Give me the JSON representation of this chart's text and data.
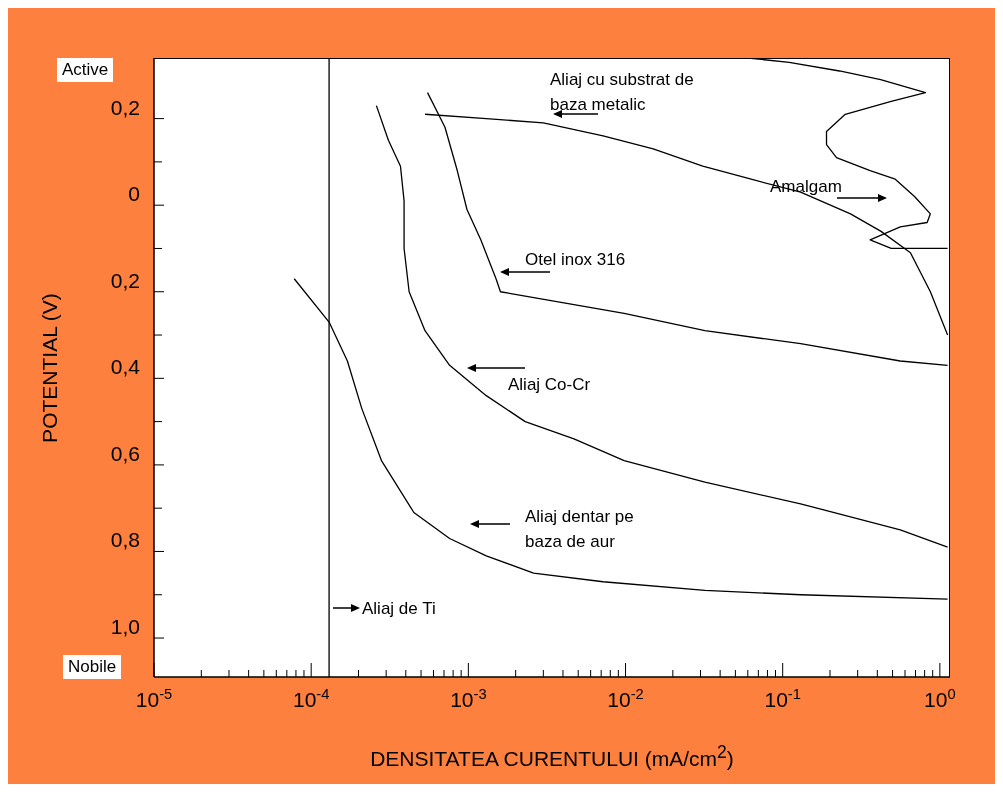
{
  "chart_data": {
    "type": "line",
    "xlabel": "DENSITATEA CURENTULUI (mA/cm$^{2}$)",
    "ylabel": "POTENTIAL (V)",
    "log": "x",
    "xlim": [
      1e-05,
      1.16
    ],
    "ylim": [
      -1.09,
      0.34
    ],
    "xticks": [
      {
        "value": 1e-05,
        "label": "10$^{-5}$"
      },
      {
        "value": 2e-05,
        "label": null
      },
      {
        "value": 3e-05,
        "label": null
      },
      {
        "value": 4e-05,
        "label": null
      },
      {
        "value": 5e-05,
        "label": null
      },
      {
        "value": 6e-05,
        "label": null
      },
      {
        "value": 7e-05,
        "label": null
      },
      {
        "value": 8e-05,
        "label": null
      },
      {
        "value": 9e-05,
        "label": null
      },
      {
        "value": 0.0001,
        "label": "10$^{-4}$"
      },
      {
        "value": 0.0002,
        "label": null
      },
      {
        "value": 0.0003,
        "label": null
      },
      {
        "value": 0.0004,
        "label": null
      },
      {
        "value": 0.0005,
        "label": null
      },
      {
        "value": 0.0006,
        "label": null
      },
      {
        "value": 0.0007,
        "label": null
      },
      {
        "value": 0.0008,
        "label": null
      },
      {
        "value": 0.0009,
        "label": null
      },
      {
        "value": 0.001,
        "label": "10$^{-3}$"
      },
      {
        "value": 0.002,
        "label": null
      },
      {
        "value": 0.003,
        "label": null
      },
      {
        "value": 0.004,
        "label": null
      },
      {
        "value": 0.005,
        "label": null
      },
      {
        "value": 0.006,
        "label": null
      },
      {
        "value": 0.007,
        "label": null
      },
      {
        "value": 0.008,
        "label": null
      },
      {
        "value": 0.009,
        "label": null
      },
      {
        "value": 0.01,
        "label": "10$^{-2}$"
      },
      {
        "value": 0.02,
        "label": null
      },
      {
        "value": 0.03,
        "label": null
      },
      {
        "value": 0.04,
        "label": null
      },
      {
        "value": 0.05,
        "label": null
      },
      {
        "value": 0.06,
        "label": null
      },
      {
        "value": 0.07,
        "label": null
      },
      {
        "value": 0.08,
        "label": null
      },
      {
        "value": 0.09,
        "label": null
      },
      {
        "value": 0.1,
        "label": "10$^{-1}$"
      },
      {
        "value": 0.2,
        "label": null
      },
      {
        "value": 0.3,
        "label": null
      },
      {
        "value": 0.4,
        "label": null
      },
      {
        "value": 0.5,
        "label": null
      },
      {
        "value": 0.6,
        "label": null
      },
      {
        "value": 0.7,
        "label": null
      },
      {
        "value": 0.8,
        "label": null
      },
      {
        "value": 0.9,
        "label": null
      },
      {
        "value": 1,
        "label": "10$^{0}$"
      }
    ],
    "yticks": [
      {
        "value": 0.2,
        "label": "0,2"
      },
      {
        "value": 0.1,
        "label": null
      },
      0,
      {
        "value": -0.1,
        "label": null
      },
      {
        "value": -0.2,
        "label": "0,2"
      },
      {
        "value": -0.3,
        "label": null
      },
      {
        "value": -0.4,
        "label": "0,4"
      },
      {
        "value": -0.5,
        "label": null
      },
      {
        "value": -0.6,
        "label": "0,6"
      },
      {
        "value": -0.7,
        "label": null
      },
      {
        "value": -0.8,
        "label": "0,8"
      },
      {
        "value": -0.9,
        "label": null
      },
      {
        "value": -1.0,
        "label": "1,0"
      }
    ],
    "series": [
      {
        "color": "#000000",
        "x": [
          0.00013,
          0.00013
        ],
        "values": [
          0.34,
          -1.09
        ]
      },
      {
        "color": "#000000",
        "x": [
          7.8e-05,
          0.00013,
          0.00017,
          0.00021,
          0.00028,
          0.00045,
          0.00076,
          0.0013,
          0.0026,
          0.0072,
          0.032,
          0.13,
          1.12
        ],
        "values": [
          -0.17,
          -0.27,
          -0.36,
          -0.47,
          -0.59,
          -0.71,
          -0.77,
          -0.81,
          -0.85,
          -0.87,
          -0.89,
          -0.9,
          -0.91
        ]
      },
      {
        "color": "#000000",
        "x": [
          0.00026,
          0.00031,
          0.00037,
          0.00039,
          0.00039,
          0.00042,
          0.00053,
          0.00076,
          0.0013,
          0.0023,
          0.0047,
          0.0098,
          0.032,
          0.13,
          0.56,
          1.12
        ],
        "values": [
          0.23,
          0.15,
          0.09,
          0.01,
          -0.1,
          -0.2,
          -0.29,
          -0.37,
          -0.44,
          -0.5,
          -0.54,
          -0.59,
          -0.64,
          -0.69,
          -0.75,
          -0.79
        ]
      },
      {
        "color": "#000000",
        "x": [
          0.00055,
          0.00071,
          0.00085,
          0.00098,
          0.0012,
          0.0015,
          0.0016,
          0.0023,
          0.0047,
          0.0098,
          0.032,
          0.13,
          0.56,
          1.12
        ],
        "values": [
          0.26,
          0.18,
          0.08,
          -0.01,
          -0.08,
          -0.17,
          -0.2,
          -0.21,
          -0.23,
          -0.25,
          -0.29,
          -0.32,
          -0.36,
          -0.37
        ]
      },
      {
        "color": "#000000",
        "x": [
          0.00053,
          0.0013,
          0.003,
          0.0072,
          0.015,
          0.031,
          0.063,
          0.13,
          0.27,
          0.42,
          0.65,
          0.87,
          1.12
        ],
        "values": [
          0.21,
          0.2,
          0.19,
          0.16,
          0.13,
          0.09,
          0.06,
          0.03,
          -0.02,
          -0.06,
          -0.11,
          -0.2,
          -0.3
        ]
      },
      {
        "color": "#000000",
        "x": [
          0.06,
          0.11,
          0.23,
          0.42,
          0.81,
          0.49,
          0.25,
          0.19,
          0.19,
          0.22,
          0.36,
          0.52,
          0.69,
          0.87,
          0.83,
          0.56,
          0.36,
          0.49,
          1.12
        ],
        "values": [
          0.34,
          0.33,
          0.31,
          0.29,
          0.26,
          0.24,
          0.21,
          0.17,
          0.14,
          0.11,
          0.08,
          0.06,
          0.02,
          -0.02,
          -0.04,
          -0.05,
          -0.08,
          -0.1,
          -0.1
        ]
      }
    ],
    "annotations": [
      "Active",
      "Nobile",
      "Aliaj cu substrat de\nbaza metalic",
      "Amalgam",
      "Otel inox 316",
      "Aliaj Co-Cr",
      "Aliaj dentar pe\nbaza de aur",
      "Aliaj de Ti"
    ]
  }
}
